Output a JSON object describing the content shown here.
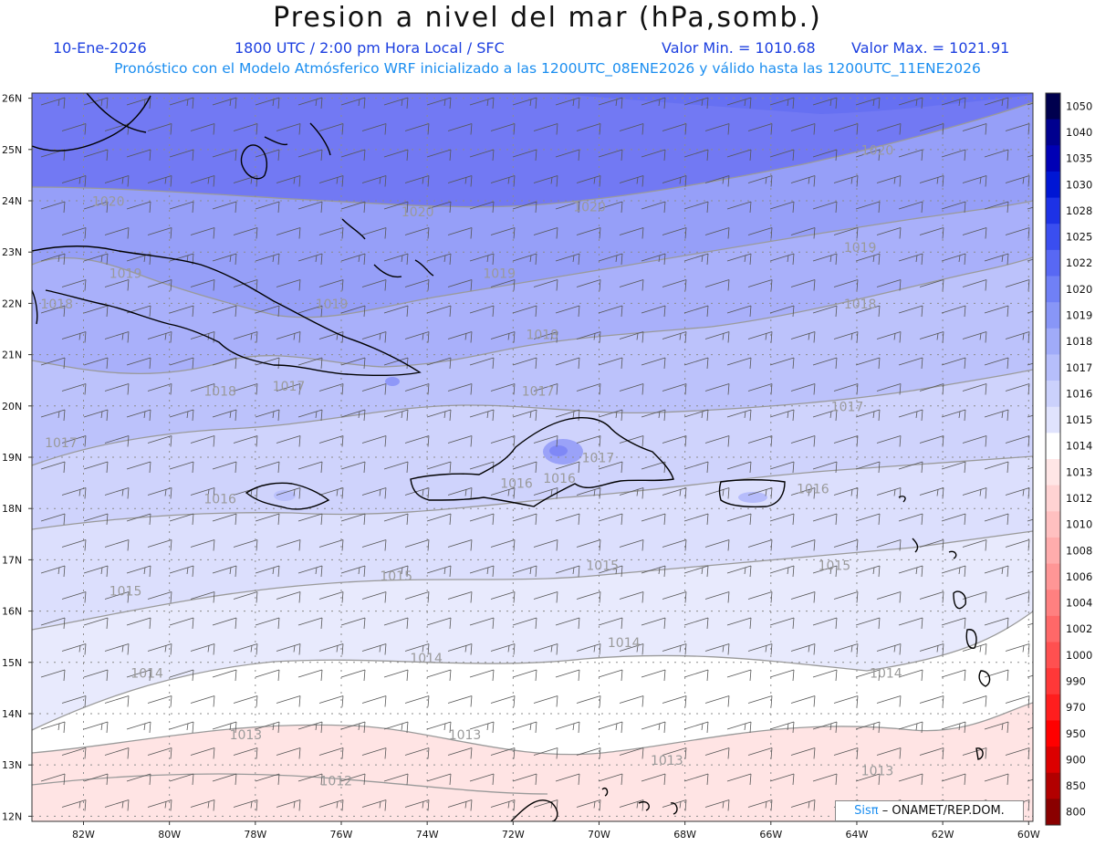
{
  "header": {
    "title": "Presion a nivel del mar (hPa,somb.)",
    "date": "10-Ene-2026",
    "time": "1800 UTC / 2:00 pm Hora Local / SFC",
    "min": "Valor Min. = 1010.68",
    "max": "Valor Max. = 1021.91",
    "model_info": "Pronóstico con el Modelo Atmósferico WRF inicializado a las 1200UTC_08ENE2026 y válido hasta las  1200UTC_11ENE2026"
  },
  "axes": {
    "lat_labels": [
      "26N",
      "25N",
      "24N",
      "23N",
      "22N",
      "21N",
      "20N",
      "19N",
      "18N",
      "17N",
      "16N",
      "15N",
      "14N",
      "13N",
      "12N"
    ],
    "lon_labels": [
      "82W",
      "80W",
      "78W",
      "76W",
      "74W",
      "72W",
      "70W",
      "68W",
      "66W",
      "64W",
      "62W",
      "60W"
    ]
  },
  "isobars": [
    {
      "value": "1020",
      "labels": [
        {
          "lon": -81.8,
          "lat": 23.9
        },
        {
          "lon": -74.6,
          "lat": 23.7
        },
        {
          "lon": -70.6,
          "lat": 23.8
        },
        {
          "lon": -63.9,
          "lat": 24.9
        }
      ]
    },
    {
      "value": "1019",
      "labels": [
        {
          "lon": -81.4,
          "lat": 22.5
        },
        {
          "lon": -76.6,
          "lat": 21.9
        },
        {
          "lon": -72.7,
          "lat": 22.5
        },
        {
          "lon": -64.3,
          "lat": 23.0
        }
      ]
    },
    {
      "value": "1018",
      "labels": [
        {
          "lon": -83.0,
          "lat": 21.9
        },
        {
          "lon": -79.2,
          "lat": 20.2
        },
        {
          "lon": -71.7,
          "lat": 21.3
        },
        {
          "lon": -64.3,
          "lat": 21.9
        }
      ]
    },
    {
      "value": "1017",
      "labels": [
        {
          "lon": -82.9,
          "lat": 19.2
        },
        {
          "lon": -77.6,
          "lat": 20.3
        },
        {
          "lon": -71.8,
          "lat": 20.2
        },
        {
          "lon": -70.4,
          "lat": 18.9
        },
        {
          "lon": -64.6,
          "lat": 19.9
        }
      ]
    },
    {
      "value": "1016",
      "labels": [
        {
          "lon": -79.2,
          "lat": 18.1
        },
        {
          "lon": -72.3,
          "lat": 18.4
        },
        {
          "lon": -71.3,
          "lat": 18.5
        },
        {
          "lon": -65.4,
          "lat": 18.3
        }
      ]
    },
    {
      "value": "1015",
      "labels": [
        {
          "lon": -81.4,
          "lat": 16.3
        },
        {
          "lon": -75.1,
          "lat": 16.6
        },
        {
          "lon": -70.3,
          "lat": 16.8
        },
        {
          "lon": -64.9,
          "lat": 16.8
        }
      ]
    },
    {
      "value": "1014",
      "labels": [
        {
          "lon": -80.9,
          "lat": 14.7
        },
        {
          "lon": -74.4,
          "lat": 15.0
        },
        {
          "lon": -69.8,
          "lat": 15.3
        },
        {
          "lon": -63.7,
          "lat": 14.7
        }
      ]
    },
    {
      "value": "1013",
      "labels": [
        {
          "lon": -78.6,
          "lat": 13.5
        },
        {
          "lon": -73.5,
          "lat": 13.5
        },
        {
          "lon": -68.8,
          "lat": 13.0
        },
        {
          "lon": -63.9,
          "lat": 12.8
        }
      ]
    },
    {
      "value": "1012",
      "labels": [
        {
          "lon": -76.5,
          "lat": 12.6
        }
      ]
    }
  ],
  "colorbar": {
    "levels": [
      "1050",
      "1040",
      "1035",
      "1030",
      "1028",
      "1025",
      "1022",
      "1020",
      "1019",
      "1018",
      "1017",
      "1016",
      "1015",
      "1014",
      "1013",
      "1012",
      "1010",
      "1008",
      "1006",
      "1004",
      "1002",
      "1000",
      "990",
      "970",
      "950",
      "900",
      "850",
      "800"
    ],
    "colors": [
      "#00004e",
      "#00008f",
      "#0000b5",
      "#0016d4",
      "#1d32e6",
      "#3a4ef0",
      "#5868f4",
      "#7080f6",
      "#8896f7",
      "#a0abf9",
      "#b6befb",
      "#cbd1fc",
      "#e0e3fd",
      "#ffffff",
      "#ffe6e6",
      "#ffd3d3",
      "#ffc0c0",
      "#ffacac",
      "#ff9696",
      "#ff8080",
      "#ff6868",
      "#ff5050",
      "#ff3838",
      "#ff1e1e",
      "#ff0000",
      "#dc0000",
      "#b20000",
      "#8a0000"
    ]
  },
  "credit": {
    "sis": "Sisπ",
    "org": "– ONAMET/REP.DOM."
  }
}
